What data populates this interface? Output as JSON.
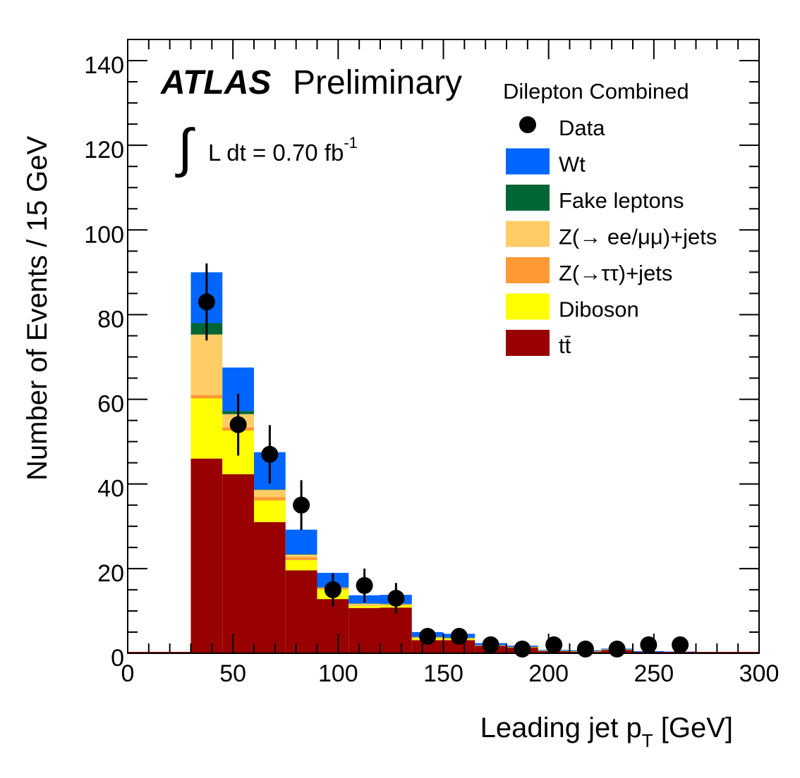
{
  "chart_data": {
    "type": "bar",
    "stacked": true,
    "title": "",
    "experiment": "ATLAS",
    "status": "Preliminary",
    "luminosity_prefix": "L dt = 0.70 fb",
    "luminosity_exponent": "-1",
    "xlabel": "Leading jet p",
    "xlabel_sub": "T",
    "xlabel_unit": " [GeV]",
    "ylabel": "Number of Events / 15 GeV",
    "xlim": [
      0,
      300
    ],
    "ylim": [
      0,
      145
    ],
    "x_ticks": [
      0,
      50,
      100,
      150,
      200,
      250,
      300
    ],
    "x_tick_labels": [
      "0",
      "50",
      "100",
      "150",
      "200",
      "250",
      "300"
    ],
    "y_ticks": [
      0,
      20,
      40,
      60,
      80,
      100,
      120,
      140
    ],
    "y_tick_labels": [
      "0",
      "20",
      "40",
      "60",
      "80",
      "100",
      "120",
      "140"
    ],
    "grid": false,
    "legend_title": "Dilepton Combined",
    "legend_position": "top-right",
    "bin_edges": [
      0,
      15,
      30,
      45,
      60,
      75,
      90,
      105,
      120,
      135,
      150,
      165,
      180,
      195,
      210,
      225,
      240,
      255,
      270,
      285,
      300
    ],
    "series": [
      {
        "name": "tt̄",
        "color": "#990000",
        "values": [
          0,
          0,
          46,
          42.3,
          31,
          19.6,
          12.8,
          10.7,
          10.8,
          3.1,
          3.1,
          1.8,
          1.4,
          0.5,
          0.4,
          0.8,
          0.2,
          0.2,
          0.1,
          0
        ]
      },
      {
        "name": "Diboson",
        "color": "#ffff00",
        "values": [
          0,
          0,
          14.2,
          10.3,
          5.1,
          2.4,
          2.3,
          0.5,
          0.5,
          0.4,
          0.3,
          0.1,
          0.1,
          0.1,
          0.1,
          0.1,
          0.1,
          0.1,
          0.1,
          0
        ]
      },
      {
        "name": "Z(→ττ)+jets",
        "color": "#ff9933",
        "values": [
          0,
          0,
          0.8,
          0.8,
          0.8,
          0.7,
          0.3,
          0.1,
          0.1,
          0.1,
          0.1,
          0,
          0,
          0,
          0,
          0,
          0,
          0,
          0,
          0
        ]
      },
      {
        "name": "Z(→ ee/μμ)+jets",
        "color": "#ffcc66",
        "values": [
          0,
          0,
          14.3,
          3.1,
          1.7,
          0.6,
          0.1,
          0.4,
          0.2,
          0.2,
          0.1,
          0,
          0,
          0,
          0,
          0,
          0,
          0,
          0,
          0
        ]
      },
      {
        "name": "Fake leptons",
        "color": "#006633",
        "values": [
          0,
          0,
          2.7,
          0.7,
          0.1,
          0.1,
          0.1,
          0.1,
          0.1,
          0.1,
          0.1,
          0,
          0,
          0,
          0,
          0,
          0,
          0,
          0,
          0
        ]
      },
      {
        "name": "Wt",
        "color": "#0066ff",
        "values": [
          0,
          0,
          12,
          10.3,
          8.8,
          5.8,
          3.4,
          1.9,
          2.1,
          1.1,
          0.9,
          0.5,
          0.3,
          0.2,
          0.2,
          0.2,
          0.2,
          0.1,
          0.1,
          0
        ]
      }
    ],
    "data": {
      "name": "Data",
      "x": [
        37.5,
        52.5,
        67.5,
        82.5,
        97.5,
        112.5,
        127.5,
        142.5,
        157.5,
        172.5,
        187.5,
        202.5,
        217.5,
        232.5,
        247.5,
        262.5
      ],
      "y": [
        83,
        54,
        47,
        35,
        15,
        16,
        13,
        4,
        4,
        2,
        1,
        2,
        1,
        1,
        2,
        2
      ],
      "err": [
        9.1,
        7.3,
        6.9,
        5.9,
        3.9,
        4.0,
        3.6,
        2.0,
        2.0,
        1.4,
        1.0,
        1.4,
        1.0,
        1.0,
        1.4,
        1.4
      ]
    },
    "legend_order": [
      "Data",
      "Wt",
      "Fake leptons",
      "Z(→ ee/μμ)+jets",
      "Z(→ττ)+jets",
      "Diboson",
      "tt̄"
    ]
  }
}
